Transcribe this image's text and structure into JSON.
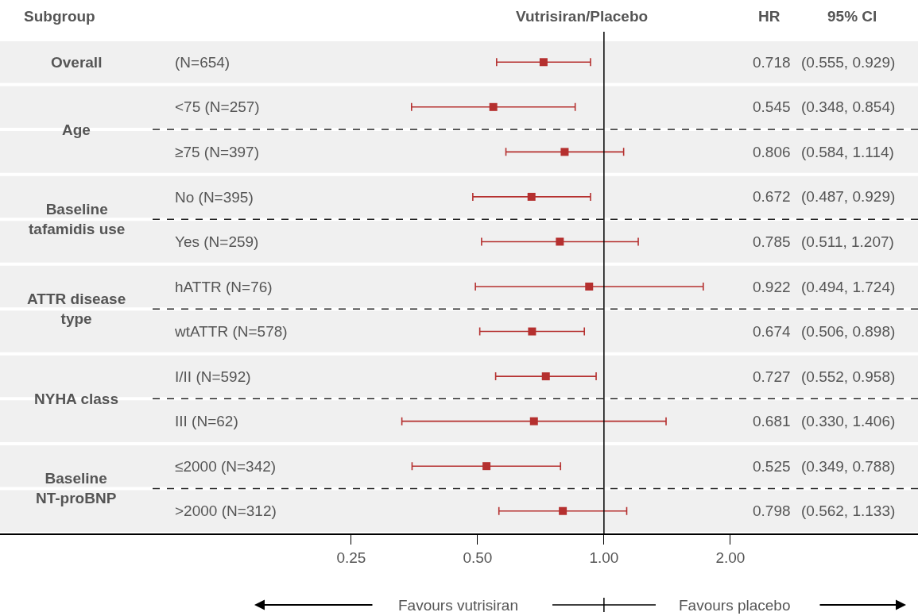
{
  "chart_data": {
    "type": "scatter",
    "categories": [
      "(N=654)",
      "<75 (N=257)",
      "≥75 (N=397)",
      "No (N=395)",
      "Yes (N=259)",
      "hATTR (N=76)",
      "wtATTR (N=578)",
      "I/II (N=592)",
      "III (N=62)",
      "≤2000 (N=342)",
      ">2000 (N=312)"
    ],
    "values": [
      0.718,
      0.545,
      0.806,
      0.672,
      0.785,
      0.922,
      0.674,
      0.727,
      0.681,
      0.525,
      0.798
    ],
    "errors": [
      [
        0.555,
        0.929
      ],
      [
        0.348,
        0.854
      ],
      [
        0.584,
        1.114
      ],
      [
        0.487,
        0.929
      ],
      [
        0.511,
        1.207
      ],
      [
        0.494,
        1.724
      ],
      [
        0.506,
        0.898
      ],
      [
        0.552,
        0.958
      ],
      [
        0.33,
        1.406
      ],
      [
        0.349,
        0.788
      ],
      [
        0.562,
        1.133
      ]
    ],
    "color": "#b5302f",
    "marker": "square",
    "orientation": "horizontal",
    "log": "x",
    "grid": false,
    "legend": false,
    "xlim": [
      0.0364,
      5.6
    ],
    "xticks": [
      {
        "value": 0.25,
        "label": "0.25"
      },
      {
        "value": 0.5,
        "label": "0.50"
      },
      {
        "value": 1,
        "label": "1.00"
      },
      {
        "value": 2,
        "label": "2.00"
      }
    ],
    "ref_lines": [
      {
        "axis": "x",
        "value": 1,
        "color": "#000000"
      }
    ],
    "annotations": [
      "Subgroup",
      "Vutrisiran/Placebo",
      "HR",
      "95% CI",
      "Overall",
      "Age",
      "Baseline\ntafamidis use",
      "ATTR disease\ntype",
      "NYHA class",
      "Baseline\nNT-proBNP",
      "Favours vutrisiran",
      "Favours placebo",
      "(0.555, 0.929)",
      "(0.348, 0.854)",
      "(0.584, 1.114)",
      "(0.487, 0.929)",
      "(0.511, 1.207)",
      "(0.494, 1.724)",
      "(0.506, 0.898)",
      "(0.552, 0.958)",
      "(0.330, 1.406)",
      "(0.349, 0.788)",
      "(0.562, 1.133)",
      "0.718",
      "0.545",
      "0.806",
      "0.672",
      "0.785",
      "0.922",
      "0.674",
      "0.727",
      "0.681",
      "0.525",
      "0.798"
    ]
  }
}
